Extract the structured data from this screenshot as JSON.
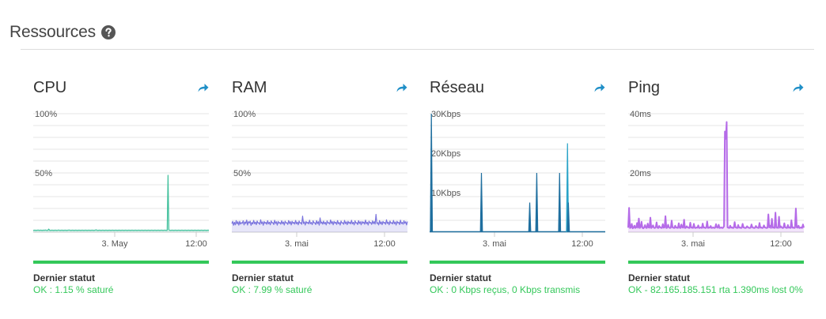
{
  "header": {
    "title": "Ressources",
    "help_icon": "question-circle-icon"
  },
  "cards": [
    {
      "title": "CPU",
      "status_label": "Dernier statut",
      "status_value": "OK : 1.15 % saturé",
      "chart_data": {
        "type": "line",
        "color": "#3dbf9a",
        "fill": true,
        "y_ticks": [
          "100%",
          "50%"
        ],
        "x_ticks": [
          "3. May",
          "12:00"
        ],
        "ylim": [
          0,
          100
        ],
        "series": [
          {
            "values": [
              1.5,
              1.6,
              1.7,
              1.5,
              1.6,
              1.6,
              1.8,
              1.5,
              1.6,
              1.7,
              1.6,
              1.5,
              1.6,
              1.7,
              1.6,
              1.8,
              1.6,
              1.5,
              1.6,
              2.6,
              1.6,
              1.5,
              1.6,
              1.7,
              1.6,
              1.5,
              1.6,
              1.7,
              1.6,
              1.5,
              1.6,
              1.8,
              1.6,
              1.5,
              1.6,
              1.7,
              1.6,
              1.5,
              1.6,
              1.7,
              1.6,
              1.5,
              1.6,
              1.7,
              1.8,
              1.6,
              1.5,
              1.6,
              1.7,
              1.6,
              1.5,
              1.6,
              1.7,
              1.6,
              1.5,
              1.6,
              1.7,
              1.6,
              1.5,
              1.6,
              1.7,
              1.6,
              1.5,
              1.6,
              1.7,
              1.6,
              1.5,
              1.6,
              1.7,
              1.6,
              1.5,
              1.6,
              1.7,
              1.6,
              1.5,
              1.6,
              1.7,
              2.0,
              1.6,
              1.5,
              1.6,
              1.7,
              1.6,
              1.5,
              1.6,
              1.7,
              1.6,
              1.5,
              1.6,
              1.7,
              1.6,
              1.5,
              1.6,
              1.7,
              1.6,
              1.5,
              1.6,
              1.7,
              1.6,
              1.5,
              1.6,
              1.7,
              1.6,
              1.5,
              1.6,
              1.7,
              1.6,
              1.5,
              1.6,
              1.7,
              1.6,
              1.5,
              1.6,
              1.7,
              1.6,
              1.5,
              1.6,
              1.7,
              1.6,
              1.5,
              1.6,
              1.7,
              1.6,
              1.5,
              1.6,
              1.7,
              1.6,
              1.5,
              1.6,
              1.7,
              1.6,
              1.5,
              1.6,
              1.7,
              1.6,
              1.5,
              1.6,
              1.7,
              1.6,
              1.5,
              1.6,
              1.7,
              1.6,
              1.5,
              1.6,
              1.7,
              1.6,
              1.5,
              1.6,
              1.7,
              1.6,
              1.5,
              1.6,
              1.7,
              1.6,
              1.5,
              1.6,
              1.7,
              1.6,
              1.5,
              1.6,
              1.7,
              1.6,
              1.5,
              1.6,
              48,
              2.0,
              1.6,
              1.5,
              1.6,
              1.7,
              1.6,
              1.5,
              1.6,
              1.7,
              1.6,
              1.5,
              1.6,
              1.7,
              1.6,
              1.5,
              1.6,
              1.7,
              1.6,
              1.5,
              1.6,
              1.7,
              1.6,
              1.5,
              1.6,
              1.7,
              1.6,
              1.5,
              1.6,
              1.7,
              1.6,
              1.5,
              1.6,
              1.7,
              1.6,
              1.5,
              1.6,
              1.7,
              1.6,
              1.5,
              1.6,
              1.7,
              1.6,
              1.5,
              1.6,
              1.7,
              1.6,
              1.5,
              1.6,
              1.7,
              1.6
            ]
          }
        ]
      }
    },
    {
      "title": "RAM",
      "status_label": "Dernier statut",
      "status_value": "OK : 7.99 % saturé",
      "chart_data": {
        "type": "line",
        "color": "#7a74dd",
        "fill": true,
        "y_ticks": [
          "100%",
          "50%"
        ],
        "x_ticks": [
          "3. mai",
          "12:00"
        ],
        "ylim": [
          0,
          100
        ],
        "series": [
          {
            "values": [
              7.2,
              9.1,
              5.8,
              8.4,
              6.2,
              9.8,
              7.0,
              8.8,
              5.9,
              9.2,
              6.8,
              8.1,
              7.5,
              9.6,
              6.1,
              8.6,
              7.3,
              10.2,
              6.0,
              8.9,
              7.7,
              9.3,
              5.7,
              8.2,
              6.9,
              9.9,
              7.1,
              8.5,
              6.3,
              9.4,
              7.6,
              8.0,
              6.5,
              10.4,
              7.2,
              8.7,
              5.8,
              9.0,
              7.4,
              8.3,
              6.6,
              9.7,
              7.0,
              8.4,
              6.2,
              9.5,
              7.8,
              8.1,
              6.4,
              10.0,
              7.3,
              8.8,
              5.9,
              9.1,
              7.5,
              8.2,
              6.7,
              9.6,
              7.1,
              8.6,
              6.0,
              9.3,
              7.7,
              8.0,
              6.5,
              9.8,
              7.2,
              8.9,
              6.1,
              9.2,
              7.4,
              8.3,
              6.8,
              9.9,
              7.0,
              8.5,
              6.2,
              9.4,
              7.6,
              8.1,
              6.6,
              13.5,
              7.3,
              8.7,
              6.0,
              9.0,
              7.5,
              8.4,
              6.9,
              10.1,
              7.1,
              8.2,
              6.3,
              9.6,
              7.8,
              8.0,
              6.4,
              9.7,
              7.2,
              8.8,
              5.9,
              12.0,
              7.4,
              8.6,
              6.7,
              9.3,
              7.0,
              8.3,
              6.1,
              9.5,
              7.6,
              8.1,
              6.8,
              10.3,
              7.3,
              8.9,
              6.2,
              9.1,
              7.5,
              8.4,
              6.5,
              9.8,
              7.1,
              8.2,
              6.0,
              9.4,
              7.7,
              8.0,
              6.6,
              9.9,
              7.2,
              8.7,
              6.3,
              9.2,
              7.4,
              8.5,
              6.9,
              10.0,
              7.0,
              8.3,
              6.1,
              9.6,
              7.6,
              8.1,
              6.4,
              9.7,
              7.3,
              8.8,
              6.2,
              9.0,
              7.5,
              8.6,
              6.7,
              10.2,
              7.1,
              8.4,
              6.0,
              9.3,
              7.8,
              8.2,
              6.5,
              9.5,
              7.2,
              8.9,
              6.8,
              15.0,
              7.4,
              8.0,
              6.1,
              9.8,
              7.0,
              8.7,
              6.3,
              9.1,
              7.6,
              8.3,
              6.6,
              10.4,
              7.3,
              8.5,
              6.2,
              9.4,
              7.5,
              8.1,
              6.9,
              9.9,
              7.1,
              8.6,
              6.0,
              9.2,
              7.7,
              8.4,
              6.4,
              10.1,
              7.2,
              8.2,
              6.7,
              9.6,
              7.4,
              8.8,
              6.1,
              9.0
            ]
          }
        ]
      }
    },
    {
      "title": "Réseau",
      "status_label": "Dernier statut",
      "status_value": "OK : 0 Kbps reçus, 0 Kbps transmis",
      "chart_data": {
        "type": "line",
        "color": "#1f6f9f",
        "color2": "#2aa4c8",
        "fill": false,
        "y_ticks": [
          "30Kbps",
          "20Kbps",
          "10Kbps"
        ],
        "x_ticks": [
          "3. mai",
          "12:00"
        ],
        "ylim": [
          0,
          30
        ],
        "spikes": [
          {
            "pos": 0.01,
            "value": 30.0
          },
          {
            "pos": 0.295,
            "value": 15.0
          },
          {
            "pos": 0.57,
            "value": 7.5
          },
          {
            "pos": 0.61,
            "value": 15.0
          },
          {
            "pos": 0.74,
            "value": 15.0
          },
          {
            "pos": 0.785,
            "value": 22.5,
            "alt": true
          },
          {
            "pos": 0.79,
            "value": 7.5
          }
        ]
      }
    },
    {
      "title": "Ping",
      "status_label": "Dernier statut",
      "status_value": "OK - 82.165.185.151 rta 1.390ms lost 0%",
      "chart_data": {
        "type": "line",
        "color": "#b56be8",
        "fill": true,
        "y_ticks": [
          "40ms",
          "20ms"
        ],
        "x_ticks": [
          "3. mai",
          "12:00"
        ],
        "ylim": [
          0,
          40
        ],
        "series": [
          {
            "values": [
              1.5,
              8.2,
              1.4,
              1.6,
              2.8,
              1.3,
              1.5,
              2.2,
              1.4,
              1.6,
              3.1,
              1.5,
              4.6,
              1.4,
              1.7,
              3.5,
              1.5,
              1.3,
              1.6,
              2.4,
              1.5,
              1.4,
              2.9,
              1.6,
              1.5,
              4.9,
              1.4,
              1.7,
              2.3,
              1.5,
              1.4,
              1.6,
              3.3,
              1.5,
              1.4,
              2.1,
              1.6,
              1.5,
              1.4,
              2.7,
              1.5,
              1.6,
              5.4,
              1.4,
              1.5,
              2.5,
              1.6,
              1.4,
              1.5,
              3.9,
              1.6,
              1.5,
              1.4,
              2.2,
              1.5,
              1.6,
              1.4,
              3.0,
              1.5,
              1.4,
              2.6,
              1.6,
              1.5,
              4.2,
              1.4,
              1.5,
              2.0,
              1.6,
              1.5,
              1.4,
              3.2,
              1.5,
              1.6,
              1.4,
              2.8,
              1.5,
              1.4,
              1.6,
              1.5,
              2.3,
              1.4,
              1.5,
              1.6,
              1.4,
              2.9,
              1.5,
              1.6,
              1.4,
              1.5,
              3.6,
              1.4,
              1.6,
              1.5,
              2.1,
              1.4,
              1.5,
              1.6,
              1.4,
              1.5,
              2.7,
              1.6,
              1.5,
              2.5,
              1.4,
              1.5,
              1.6,
              1.4,
              1.5,
              2.0,
              34.0,
              31.5,
              37.2,
              1.6,
              1.5,
              1.4,
              2.2,
              1.5,
              1.6,
              1.4,
              1.5,
              3.4,
              1.6,
              1.5,
              1.4,
              2.4,
              1.5,
              1.6,
              1.4,
              1.5,
              2.8,
              1.6,
              1.5,
              1.4,
              1.5,
              2.0,
              1.6,
              1.5,
              1.4,
              1.5,
              2.6,
              1.6,
              1.5,
              1.4,
              1.5,
              2.1,
              1.6,
              1.5,
              1.4,
              3.1,
              1.5,
              1.6,
              1.4,
              1.5,
              2.3,
              1.6,
              1.5,
              1.4,
              1.5,
              6.0,
              1.6,
              2.2,
              1.4,
              4.5,
              1.5,
              1.6,
              1.4,
              6.6,
              1.5,
              1.6,
              1.4,
              5.2,
              1.5,
              2.0,
              1.6,
              1.4,
              1.5,
              3.0,
              1.6,
              1.5,
              1.4,
              2.4,
              1.5,
              1.6,
              1.4,
              4.0,
              1.5,
              1.6,
              1.4,
              1.5,
              8.0,
              1.6,
              1.5,
              2.2,
              1.4,
              1.5,
              1.6,
              1.4,
              2.6,
              1.5
            ]
          }
        ]
      }
    }
  ]
}
